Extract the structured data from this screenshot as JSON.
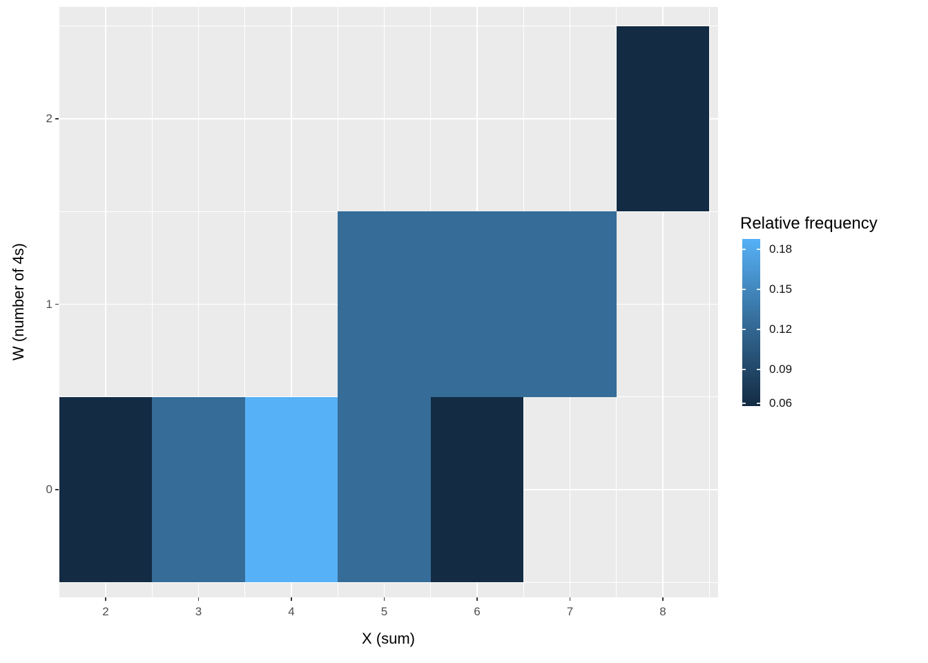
{
  "chart_data": {
    "type": "heatmap",
    "xlabel": "X (sum)",
    "ylabel": "W (number of 4s)",
    "x_ticks": [
      2,
      3,
      4,
      5,
      6,
      7,
      8
    ],
    "y_ticks": [
      0,
      1,
      2
    ],
    "x_range": [
      1.5,
      8.5
    ],
    "y_range": [
      -0.5,
      2.5
    ],
    "tiles": [
      {
        "x": 2,
        "w": 0,
        "value": 0.0625
      },
      {
        "x": 3,
        "w": 0,
        "value": 0.125
      },
      {
        "x": 4,
        "w": 0,
        "value": 0.1875
      },
      {
        "x": 5,
        "w": 0,
        "value": 0.125
      },
      {
        "x": 6,
        "w": 0,
        "value": 0.0625
      },
      {
        "x": 5,
        "w": 1,
        "value": 0.125
      },
      {
        "x": 6,
        "w": 1,
        "value": 0.125
      },
      {
        "x": 7,
        "w": 1,
        "value": 0.125
      },
      {
        "x": 8,
        "w": 2,
        "value": 0.0625
      }
    ],
    "fill_scale": {
      "low_color": "#132B43",
      "mid_color": "#356C98",
      "high_color": "#56B1F7",
      "limits": [
        0.0625,
        0.1875
      ]
    },
    "legend": {
      "title": "Relative frequency",
      "ticks": [
        "0.18",
        "0.15",
        "0.12",
        "0.09",
        "0.06"
      ]
    },
    "panel_background": "#EBEBEB",
    "grid_color": "#FFFFFF"
  }
}
